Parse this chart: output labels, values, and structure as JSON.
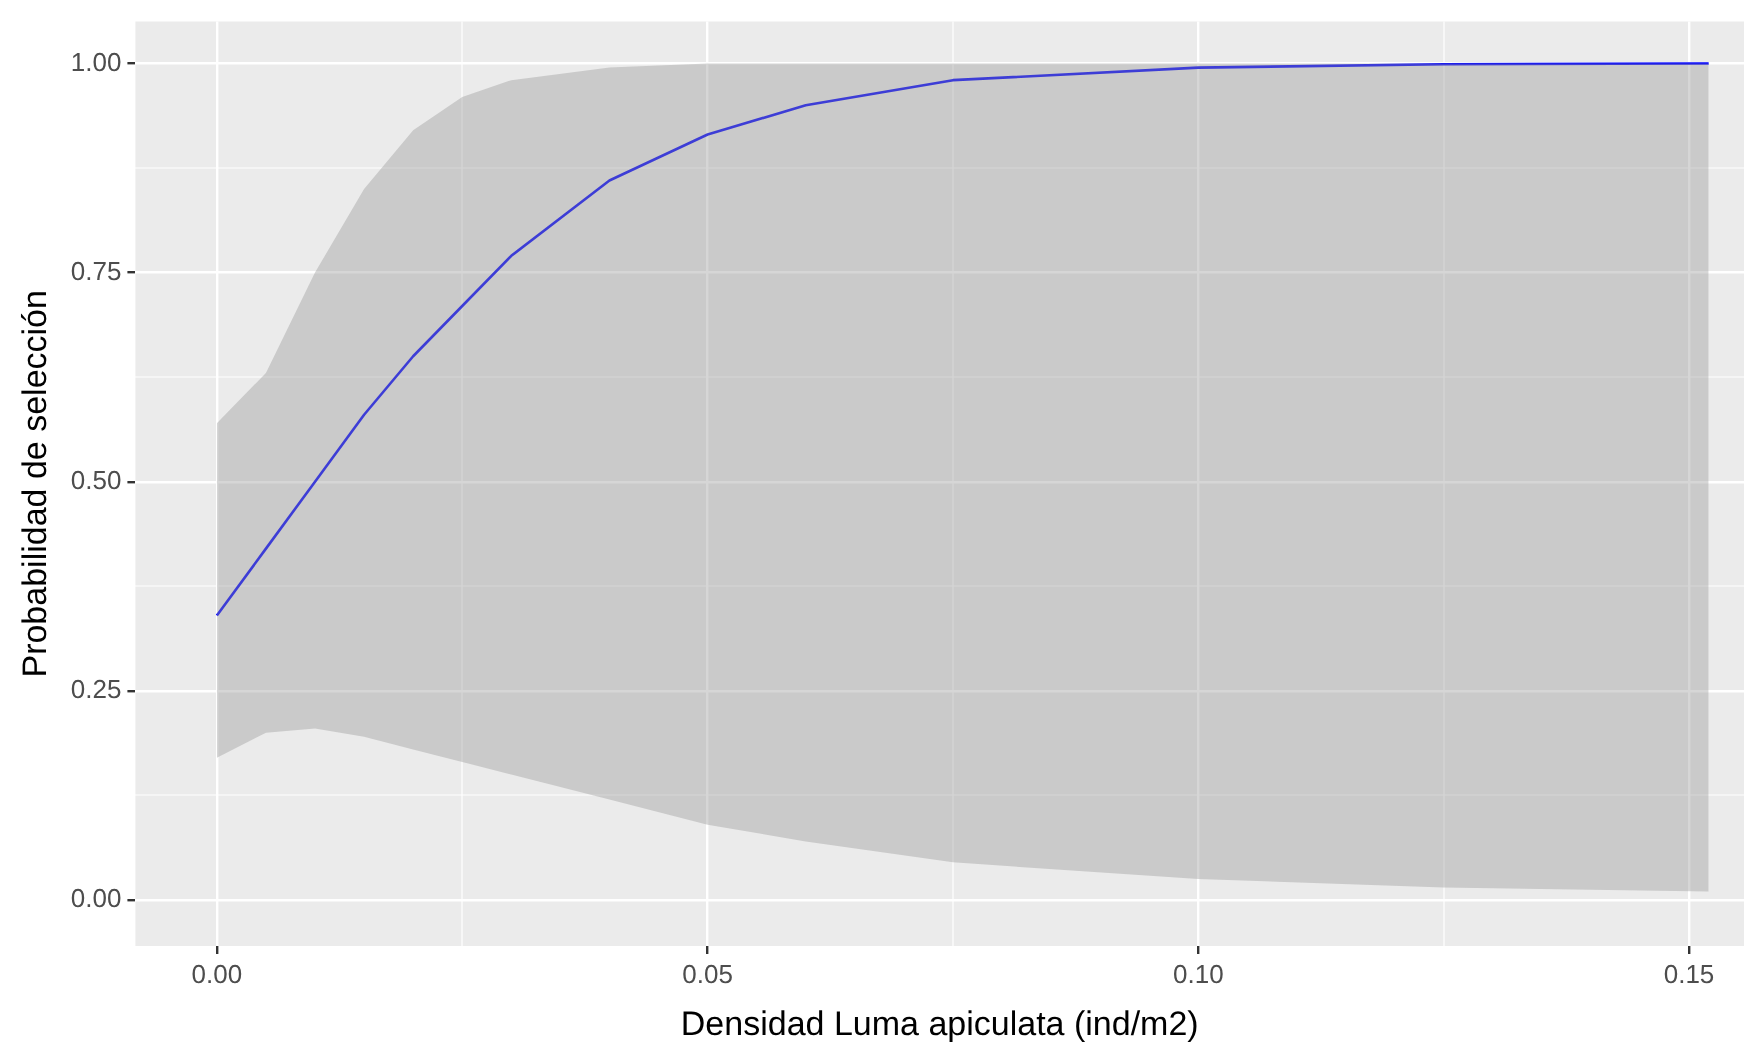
{
  "chart_data": {
    "type": "line",
    "xlabel": "Densidad Luma apiculata (ind/m2)",
    "ylabel": "Probabilidad de selección",
    "x": [
      0,
      0.005,
      0.01,
      0.015,
      0.02,
      0.025,
      0.03,
      0.04,
      0.05,
      0.06,
      0.075,
      0.1,
      0.125,
      0.152
    ],
    "series": [
      {
        "color": "#0000ff",
        "values": [
          0.34,
          0.42,
          0.5,
          0.58,
          0.65,
          0.71,
          0.77,
          0.86,
          0.915,
          0.95,
          0.98,
          0.995,
          0.999,
          1.0
        ],
        "upper": [
          0.57,
          0.63,
          0.75,
          0.85,
          0.92,
          0.96,
          0.98,
          0.995,
          1.0,
          1.0,
          1.0,
          1.0,
          1.0,
          1.0
        ],
        "lower": [
          0.17,
          0.2,
          0.205,
          0.195,
          0.18,
          0.165,
          0.15,
          0.12,
          0.09,
          0.07,
          0.045,
          0.025,
          0.015,
          0.01
        ]
      }
    ],
    "xlim": [
      -0.0083,
      0.1556
    ],
    "ylim": [
      -0.055,
      1.05
    ],
    "xticks": [
      {
        "value": 0,
        "label": "0.00"
      },
      {
        "value": 0.025,
        "label": null
      },
      {
        "value": 0.05,
        "label": "0.05"
      },
      {
        "value": 0.075,
        "label": null
      },
      {
        "value": 0.1,
        "label": "0.10"
      },
      {
        "value": 0.125,
        "label": null
      },
      {
        "value": 0.15,
        "label": "0.15"
      }
    ],
    "yticks": [
      {
        "value": 0,
        "label": "0.00"
      },
      {
        "value": 0.125,
        "label": null
      },
      {
        "value": 0.25,
        "label": "0.25"
      },
      {
        "value": 0.375,
        "label": null
      },
      {
        "value": 0.5,
        "label": "0.50"
      },
      {
        "value": 0.625,
        "label": null
      },
      {
        "value": 0.75,
        "label": "0.75"
      },
      {
        "value": 0.875,
        "label": null
      },
      {
        "value": 1,
        "label": "1.00"
      }
    ],
    "grid": true,
    "legend": false,
    "marker": "none",
    "line_style": "solid"
  }
}
